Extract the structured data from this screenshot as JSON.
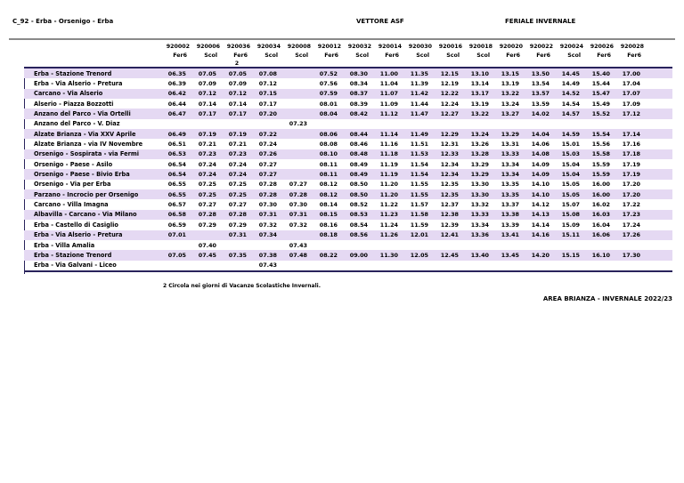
{
  "page": {
    "route_title": "C_92 - Erba - Orsenigo - Erba",
    "carrier": "VETTORE ASF",
    "season": "FERIALE INVERNALE",
    "footnote": "2 Circola nei giorni di Vacanze Scolastiche Invernali.",
    "area_footer": "AREA BRIANZA - INVERNALE 2022/23"
  },
  "colors": {
    "band": "#E5D9F3",
    "rule_dark": "#29235C",
    "rule_gray": "#8A8A8A"
  },
  "timetable": {
    "runs": [
      {
        "code": "920002",
        "day_type": "Fer6",
        "note": ""
      },
      {
        "code": "920006",
        "day_type": "Scol",
        "note": ""
      },
      {
        "code": "920036",
        "day_type": "Fer6",
        "note": "2"
      },
      {
        "code": "920034",
        "day_type": "Scol",
        "note": ""
      },
      {
        "code": "920008",
        "day_type": "Scol",
        "note": ""
      },
      {
        "code": "920012",
        "day_type": "Fer6",
        "note": ""
      },
      {
        "code": "920032",
        "day_type": "Scol",
        "note": ""
      },
      {
        "code": "920014",
        "day_type": "Fer6",
        "note": ""
      },
      {
        "code": "920030",
        "day_type": "Scol",
        "note": ""
      },
      {
        "code": "920016",
        "day_type": "Scol",
        "note": ""
      },
      {
        "code": "920018",
        "day_type": "Scol",
        "note": ""
      },
      {
        "code": "920020",
        "day_type": "Fer6",
        "note": ""
      },
      {
        "code": "920022",
        "day_type": "Fer6",
        "note": ""
      },
      {
        "code": "920024",
        "day_type": "Scol",
        "note": ""
      },
      {
        "code": "920026",
        "day_type": "Fer6",
        "note": ""
      },
      {
        "code": "920028",
        "day_type": "Fer6",
        "note": ""
      }
    ],
    "stops": [
      {
        "name": "Erba - Stazione Trenord",
        "times": [
          "06.35",
          "07.05",
          "07.05",
          "07.08",
          "",
          "07.52",
          "08.30",
          "11.00",
          "11.35",
          "12.15",
          "13.10",
          "13.15",
          "13.50",
          "14.45",
          "15.40",
          "17.00"
        ]
      },
      {
        "name": "Erba - Via Alserio - Pretura",
        "times": [
          "06.39",
          "07.09",
          "07.09",
          "07.12",
          "",
          "07.56",
          "08.34",
          "11.04",
          "11.39",
          "12.19",
          "13.14",
          "13.19",
          "13.54",
          "14.49",
          "15.44",
          "17.04"
        ]
      },
      {
        "name": "Carcano - Via Alserio",
        "times": [
          "06.42",
          "07.12",
          "07.12",
          "07.15",
          "",
          "07.59",
          "08.37",
          "11.07",
          "11.42",
          "12.22",
          "13.17",
          "13.22",
          "13.57",
          "14.52",
          "15.47",
          "17.07"
        ]
      },
      {
        "name": "Alserio - Piazza Bozzotti",
        "times": [
          "06.44",
          "07.14",
          "07.14",
          "07.17",
          "",
          "08.01",
          "08.39",
          "11.09",
          "11.44",
          "12.24",
          "13.19",
          "13.24",
          "13.59",
          "14.54",
          "15.49",
          "17.09"
        ]
      },
      {
        "name": "Anzano del Parco - Via Ortelli",
        "times": [
          "06.47",
          "07.17",
          "07.17",
          "07.20",
          "",
          "08.04",
          "08.42",
          "11.12",
          "11.47",
          "12.27",
          "13.22",
          "13.27",
          "14.02",
          "14.57",
          "15.52",
          "17.12"
        ]
      },
      {
        "name": "Anzano del Parco - V. Diaz",
        "times": [
          "",
          "",
          "",
          "",
          "07.23",
          "",
          "",
          "",
          "",
          "",
          "",
          "",
          "",
          "",
          "",
          ""
        ]
      },
      {
        "name": "Alzate Brianza - Via XXV Aprile",
        "times": [
          "06.49",
          "07.19",
          "07.19",
          "07.22",
          "",
          "08.06",
          "08.44",
          "11.14",
          "11.49",
          "12.29",
          "13.24",
          "13.29",
          "14.04",
          "14.59",
          "15.54",
          "17.14"
        ]
      },
      {
        "name": "Alzate Brianza - via IV Novembre",
        "times": [
          "06.51",
          "07.21",
          "07.21",
          "07.24",
          "",
          "08.08",
          "08.46",
          "11.16",
          "11.51",
          "12.31",
          "13.26",
          "13.31",
          "14.06",
          "15.01",
          "15.56",
          "17.16"
        ]
      },
      {
        "name": "Orsenigo - Sospirata - via Fermi",
        "times": [
          "06.53",
          "07.23",
          "07.23",
          "07.26",
          "",
          "08.10",
          "08.48",
          "11.18",
          "11.53",
          "12.33",
          "13.28",
          "13.33",
          "14.08",
          "15.03",
          "15.58",
          "17.18"
        ]
      },
      {
        "name": "Orsenigo - Paese - Asilo",
        "times": [
          "06.54",
          "07.24",
          "07.24",
          "07.27",
          "",
          "08.11",
          "08.49",
          "11.19",
          "11.54",
          "12.34",
          "13.29",
          "13.34",
          "14.09",
          "15.04",
          "15.59",
          "17.19"
        ]
      },
      {
        "name": "Orsenigo - Paese - Bivio Erba",
        "times": [
          "06.54",
          "07.24",
          "07.24",
          "07.27",
          "",
          "08.11",
          "08.49",
          "11.19",
          "11.54",
          "12.34",
          "13.29",
          "13.34",
          "14.09",
          "15.04",
          "15.59",
          "17.19"
        ]
      },
      {
        "name": "Orsenigo - Via per Erba",
        "times": [
          "06.55",
          "07.25",
          "07.25",
          "07.28",
          "07.27",
          "08.12",
          "08.50",
          "11.20",
          "11.55",
          "12.35",
          "13.30",
          "13.35",
          "14.10",
          "15.05",
          "16.00",
          "17.20"
        ]
      },
      {
        "name": "Parzano - Incrocio per Orsenigo",
        "times": [
          "06.55",
          "07.25",
          "07.25",
          "07.28",
          "07.28",
          "08.12",
          "08.50",
          "11.20",
          "11.55",
          "12.35",
          "13.30",
          "13.35",
          "14.10",
          "15.05",
          "16.00",
          "17.20"
        ]
      },
      {
        "name": "Carcano - Villa Imagna",
        "times": [
          "06.57",
          "07.27",
          "07.27",
          "07.30",
          "07.30",
          "08.14",
          "08.52",
          "11.22",
          "11.57",
          "12.37",
          "13.32",
          "13.37",
          "14.12",
          "15.07",
          "16.02",
          "17.22"
        ]
      },
      {
        "name": "Albavilla - Carcano - Via Milano",
        "times": [
          "06.58",
          "07.28",
          "07.28",
          "07.31",
          "07.31",
          "08.15",
          "08.53",
          "11.23",
          "11.58",
          "12.38",
          "13.33",
          "13.38",
          "14.13",
          "15.08",
          "16.03",
          "17.23"
        ]
      },
      {
        "name": "Erba - Castello di Casiglio",
        "times": [
          "06.59",
          "07.29",
          "07.29",
          "07.32",
          "07.32",
          "08.16",
          "08.54",
          "11.24",
          "11.59",
          "12.39",
          "13.34",
          "13.39",
          "14.14",
          "15.09",
          "16.04",
          "17.24"
        ]
      },
      {
        "name": "Erba - Via Alserio - Pretura",
        "times": [
          "07.01",
          "",
          "07.31",
          "07.34",
          "",
          "08.18",
          "08.56",
          "11.26",
          "12.01",
          "12.41",
          "13.36",
          "13.41",
          "14.16",
          "15.11",
          "16.06",
          "17.26"
        ]
      },
      {
        "name": "Erba - Villa Amalia",
        "times": [
          "",
          "07.40",
          "",
          "",
          "07.43",
          "",
          "",
          "",
          "",
          "",
          "",
          "",
          "",
          "",
          "",
          ""
        ]
      },
      {
        "name": "Erba - Stazione Trenord",
        "times": [
          "07.05",
          "07.45",
          "07.35",
          "07.38",
          "07.48",
          "08.22",
          "09.00",
          "11.30",
          "12.05",
          "12.45",
          "13.40",
          "13.45",
          "14.20",
          "15.15",
          "16.10",
          "17.30"
        ]
      },
      {
        "name": "Erba - Via Galvani - Liceo",
        "times": [
          "",
          "",
          "",
          "07.43",
          "",
          "",
          "",
          "",
          "",
          "",
          "",
          "",
          "",
          "",
          "",
          ""
        ]
      }
    ]
  }
}
